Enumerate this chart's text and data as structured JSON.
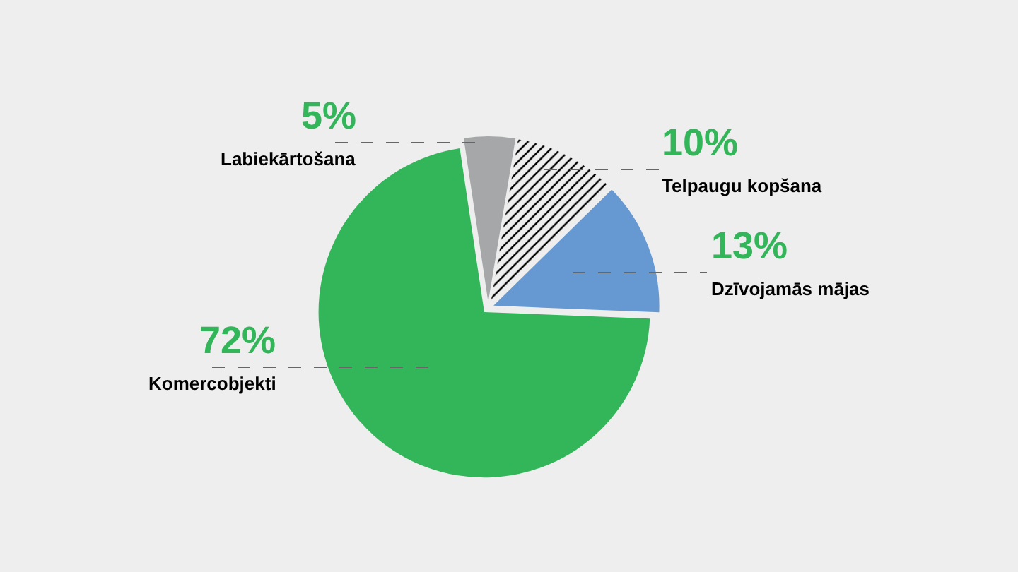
{
  "chart_data": {
    "type": "pie",
    "categories": [
      "Labiekārtošana",
      "Telpaugu kopšana",
      "Dzīvojamās mājas",
      "Komercobjekti"
    ],
    "values": [
      5,
      10,
      13,
      72
    ],
    "value_labels": [
      "5%",
      "10%",
      "13%",
      "72%"
    ],
    "colors": [
      "#a5a7a8",
      "#ffffff",
      "#6699d2",
      "#33b55a"
    ],
    "legend": false
  }
}
